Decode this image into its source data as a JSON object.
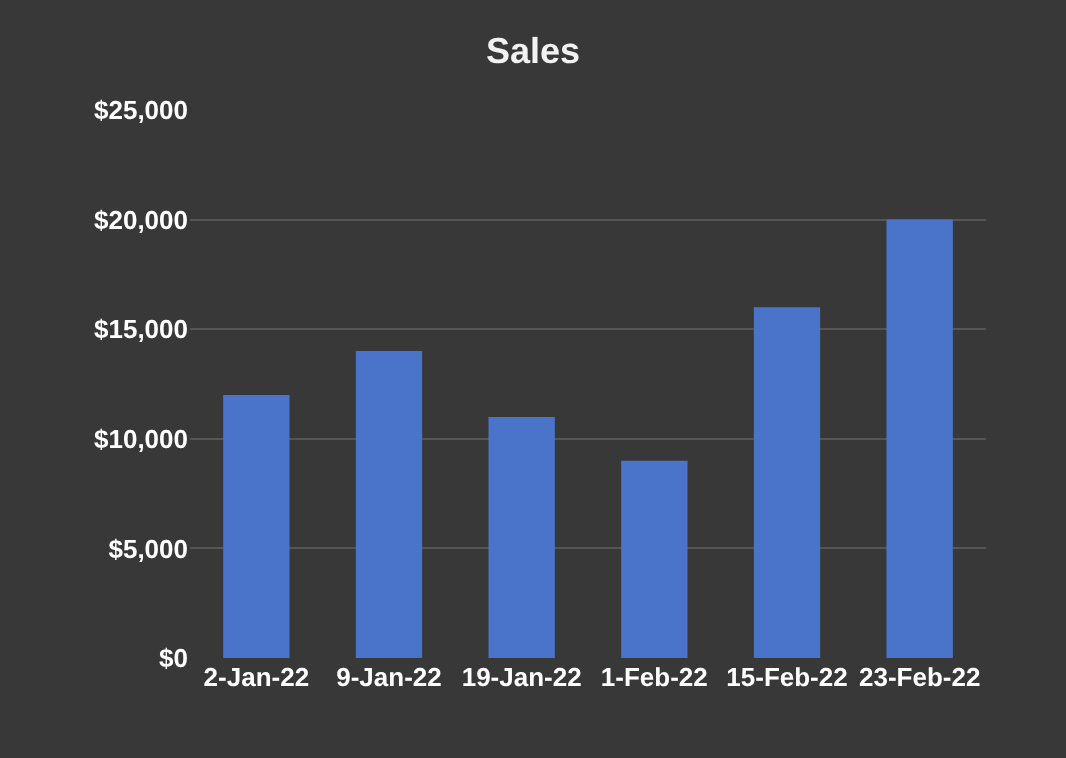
{
  "chart_data": {
    "type": "bar",
    "title": "Sales",
    "categories": [
      "2-Jan-22",
      "9-Jan-22",
      "19-Jan-22",
      "1-Feb-22",
      "15-Feb-22",
      "23-Feb-22"
    ],
    "series": [
      {
        "color": "#4a74c9",
        "values": [
          12000,
          14000,
          11000,
          9000,
          16000,
          20000
        ]
      }
    ],
    "ylim": [
      0,
      25000
    ],
    "yticks": [
      {
        "value": 0,
        "label": "$0"
      },
      {
        "value": 5000,
        "label": "$5,000"
      },
      {
        "value": 10000,
        "label": "$10,000"
      },
      {
        "value": 15000,
        "label": "$15,000"
      },
      {
        "value": 20000,
        "label": "$20,000"
      },
      {
        "value": 25000,
        "label": "$25,000"
      }
    ],
    "grid": "y"
  }
}
